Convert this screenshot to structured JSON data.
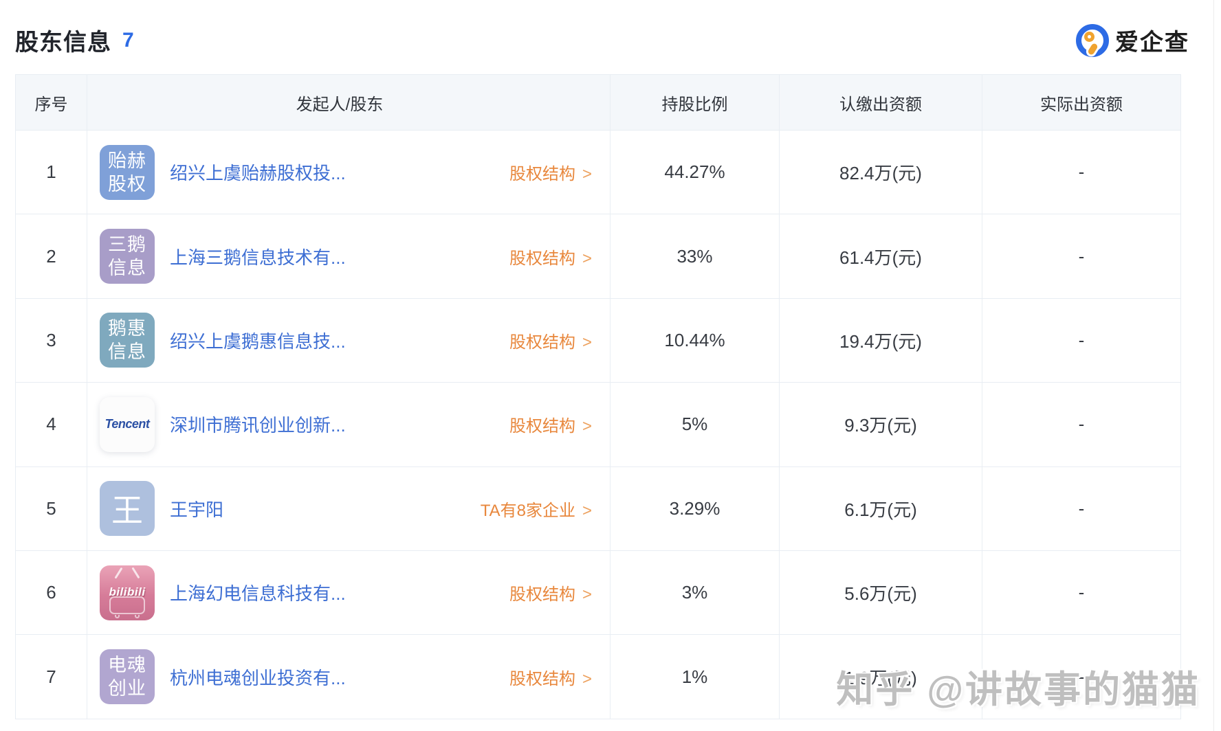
{
  "header": {
    "title": "股东信息",
    "count": "7"
  },
  "brand": {
    "name": "爱企查",
    "logo_icon": "magnifier-in-ring",
    "blue": "#2d6be5",
    "orange": "#f0a32f"
  },
  "ui": {
    "arrow": ">"
  },
  "colors": {
    "link_blue": "#3d6ed3",
    "link_orange": "#e8873c",
    "header_bg": "#f4f7fa",
    "border": "#e8edf3"
  },
  "watermark": "知乎 @讲故事的猫猫",
  "table": {
    "columns": [
      "序号",
      "发起人/股东",
      "持股比例",
      "认缴出资额",
      "实际出资额"
    ],
    "rows": [
      {
        "no": "1",
        "avatar": {
          "type": "text",
          "line1": "贻赫",
          "line2": "股权",
          "color": "#7fa0d8"
        },
        "name": "绍兴上虞贻赫股权投...",
        "action": "股权结构",
        "ratio": "44.27%",
        "subscribed": "82.4万(元)",
        "paid": "-"
      },
      {
        "no": "2",
        "avatar": {
          "type": "text",
          "line1": "三鹅",
          "line2": "信息",
          "color": "#a89dc8"
        },
        "name": "上海三鹅信息技术有...",
        "action": "股权结构",
        "ratio": "33%",
        "subscribed": "61.4万(元)",
        "paid": "-"
      },
      {
        "no": "3",
        "avatar": {
          "type": "text",
          "line1": "鹅惠",
          "line2": "信息",
          "color": "#7fa9be"
        },
        "name": "绍兴上虞鹅惠信息技...",
        "action": "股权结构",
        "ratio": "10.44%",
        "subscribed": "19.4万(元)",
        "paid": "-"
      },
      {
        "no": "4",
        "avatar": {
          "type": "tencent",
          "label": "Tencent"
        },
        "name": "深圳市腾讯创业创新...",
        "action": "股权结构",
        "ratio": "5%",
        "subscribed": "9.3万(元)",
        "paid": "-"
      },
      {
        "no": "5",
        "avatar": {
          "type": "char",
          "char": "王",
          "color": "#aec0de"
        },
        "name": "王宇阳",
        "action": "TA有8家企业",
        "ratio": "3.29%",
        "subscribed": "6.1万(元)",
        "paid": "-"
      },
      {
        "no": "6",
        "avatar": {
          "type": "bilibili",
          "label": "bilibili"
        },
        "name": "上海幻电信息科技有...",
        "action": "股权结构",
        "ratio": "3%",
        "subscribed": "5.6万(元)",
        "paid": "-"
      },
      {
        "no": "7",
        "avatar": {
          "type": "text",
          "line1": "电魂",
          "line2": "创业",
          "color": "#b1a6d0"
        },
        "name": "杭州电魂创业投资有...",
        "action": "股权结构",
        "ratio": "1%",
        "subscribed": "1.9万(元)",
        "paid": "-"
      }
    ]
  }
}
